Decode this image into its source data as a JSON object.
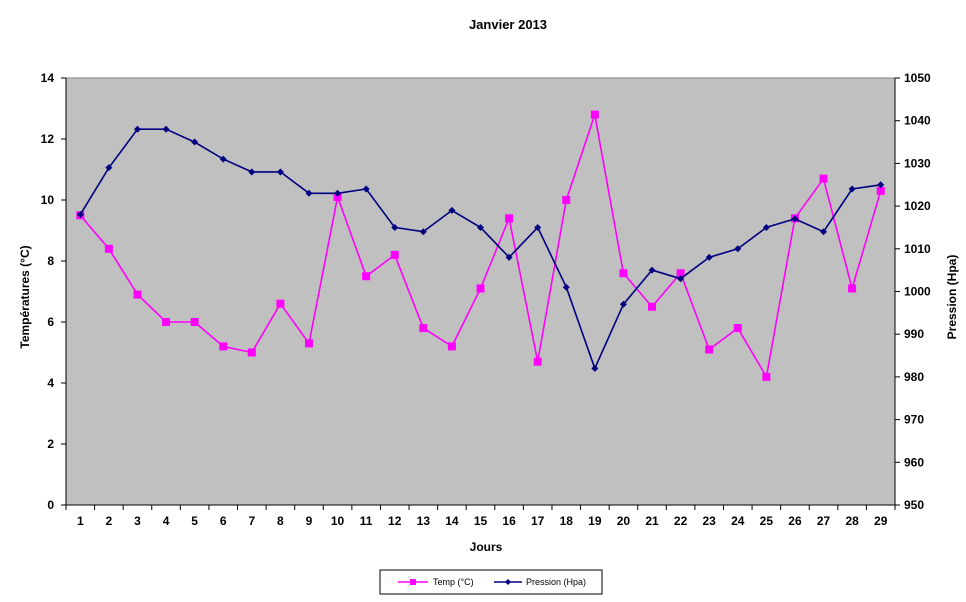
{
  "chart_data": {
    "type": "line",
    "title": "Janvier 2013",
    "xlabel": "Jours",
    "ylabel_left": "Températures (°C)",
    "ylabel_right": "Pression (Hpa)",
    "categories": [
      "1",
      "2",
      "3",
      "4",
      "5",
      "6",
      "7",
      "8",
      "9",
      "10",
      "11",
      "12",
      "13",
      "14",
      "15",
      "16",
      "17",
      "18",
      "19",
      "20",
      "21",
      "22",
      "23",
      "24",
      "25",
      "26",
      "27",
      "28",
      "29"
    ],
    "ylim_left": [
      0,
      14
    ],
    "yticks_left": [
      "0",
      "2",
      "4",
      "6",
      "8",
      "10",
      "12",
      "14"
    ],
    "ylim_right": [
      950,
      1050
    ],
    "yticks_right": [
      "950",
      "960",
      "970",
      "980",
      "990",
      "1000",
      "1010",
      "1020",
      "1030",
      "1040",
      "1050"
    ],
    "plot_background": "#c0c0c0",
    "grid": false,
    "legend_position": "bottom",
    "series": [
      {
        "name": "Temp (°C)",
        "axis": "left",
        "color": "#ff00ff",
        "marker": "square",
        "values": [
          9.5,
          8.4,
          6.9,
          6.0,
          6.0,
          5.2,
          5.0,
          6.6,
          5.3,
          10.1,
          7.5,
          8.2,
          5.8,
          5.2,
          7.1,
          9.4,
          4.7,
          10.0,
          12.8,
          7.6,
          6.5,
          7.6,
          5.1,
          5.8,
          4.2,
          9.4,
          10.7,
          7.1,
          10.3
        ]
      },
      {
        "name": "Pression (Hpa)",
        "axis": "right",
        "color": "#000080",
        "marker": "diamond",
        "values": [
          1018,
          1029,
          1038,
          1038,
          1035,
          1031,
          1028,
          1028,
          1023,
          1023,
          1024,
          1015,
          1014,
          1019,
          1015,
          1008,
          1015,
          1001,
          982,
          997,
          1005,
          1003,
          1008,
          1010,
          1015,
          1017,
          1014,
          1024,
          1025
        ]
      }
    ]
  }
}
